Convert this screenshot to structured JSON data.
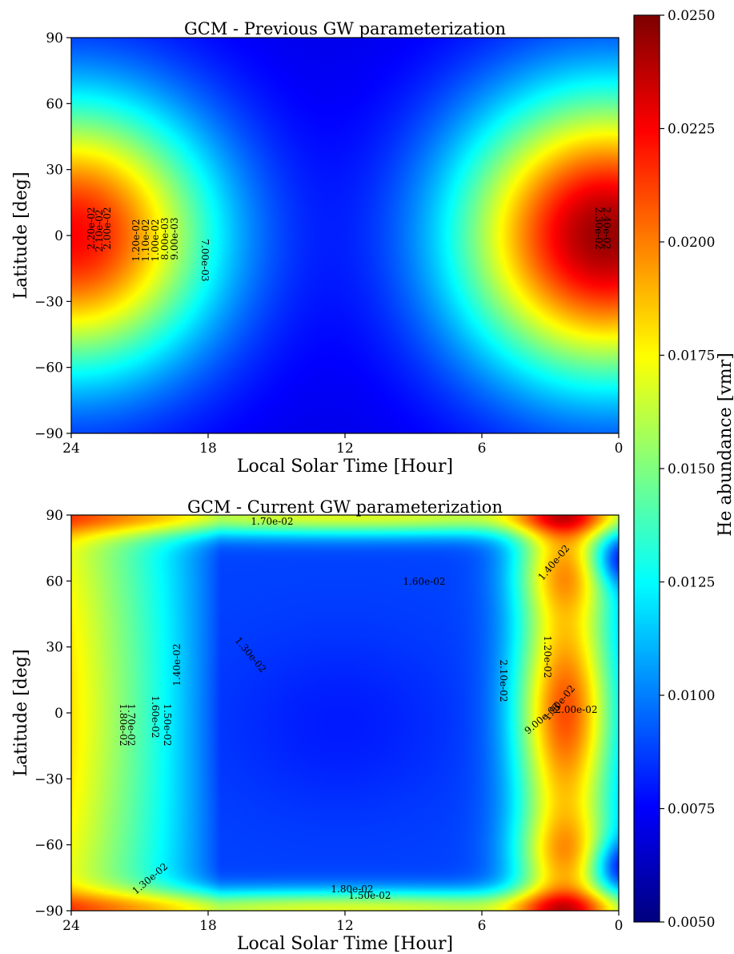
{
  "chart_data": [
    {
      "type": "heatmap",
      "title": "GCM - Previous GW parameterization",
      "xlabel": "Local Solar Time [Hour]",
      "ylabel": "Latitude [deg]",
      "xlim": [
        24,
        0
      ],
      "ylim": [
        -90,
        90
      ],
      "xticks": [
        "24",
        "18",
        "12",
        "6",
        "0"
      ],
      "yticks": [
        "90",
        "60",
        "30",
        "0",
        "−30",
        "−60",
        "−90"
      ],
      "grid": false,
      "field_model": {
        "background": 0.007,
        "peaks": [
          {
            "lst": 0.5,
            "lat": 0,
            "max": 0.0245,
            "sigma_lst_hours": 4.6,
            "sigma_lat_deg": 46
          },
          {
            "lst": 24.0,
            "lat": 0,
            "max": 0.0225,
            "sigma_lst_hours": 4.4,
            "sigma_lat_deg": 44
          }
        ]
      },
      "contour_labels": [
        "2.20e-02",
        "2.10e-02",
        "2.00e-02",
        "8.00e-03",
        "9.00e-03",
        "1.00e-02",
        "1.10e-02",
        "1.20e-02",
        "7.00e-03",
        "2.30e-02",
        "2.40e-02"
      ]
    },
    {
      "type": "heatmap",
      "title": "GCM - Current GW parameterization",
      "xlabel": "Local Solar Time [Hour]",
      "ylabel": "Latitude [deg]",
      "xlim": [
        24,
        0
      ],
      "ylim": [
        -90,
        90
      ],
      "xticks": [
        "24",
        "18",
        "12",
        "6",
        "0"
      ],
      "yticks": [
        "90",
        "60",
        "30",
        "0",
        "−30",
        "−60",
        "−90"
      ],
      "grid": false,
      "field_model": {
        "background": 0.0088,
        "min_point": {
          "lst": 12.2,
          "lat": -5,
          "value": 0.0082
        },
        "evening_band": {
          "lst_range": [
            24,
            18
          ],
          "max": 0.018
        },
        "morning_band": {
          "lst_range": [
            5,
            0
          ],
          "max": 0.0215
        },
        "polar_band": {
          "max": 0.0175
        }
      },
      "contour_labels": [
        "1.80e-02",
        "1.70e-02",
        "1.60e-02",
        "1.50e-02",
        "1.40e-02",
        "1.30e-02",
        "1.20e-02",
        "9.00e-03",
        "1.90e-02",
        "2.00e-02",
        "2.10e-02",
        "1.60e-02",
        "1.80e-02",
        "1.50e-02",
        "1.40e-02",
        "1.30e-02",
        "1.70e-02"
      ]
    }
  ],
  "colorbar": {
    "label": "He abundance [vmr]",
    "min": 0.005,
    "max": 0.025,
    "ticks": [
      "0.0050",
      "0.0075",
      "0.0100",
      "0.0125",
      "0.0150",
      "0.0175",
      "0.0200",
      "0.0225",
      "0.0250"
    ],
    "colormap": "jet"
  }
}
